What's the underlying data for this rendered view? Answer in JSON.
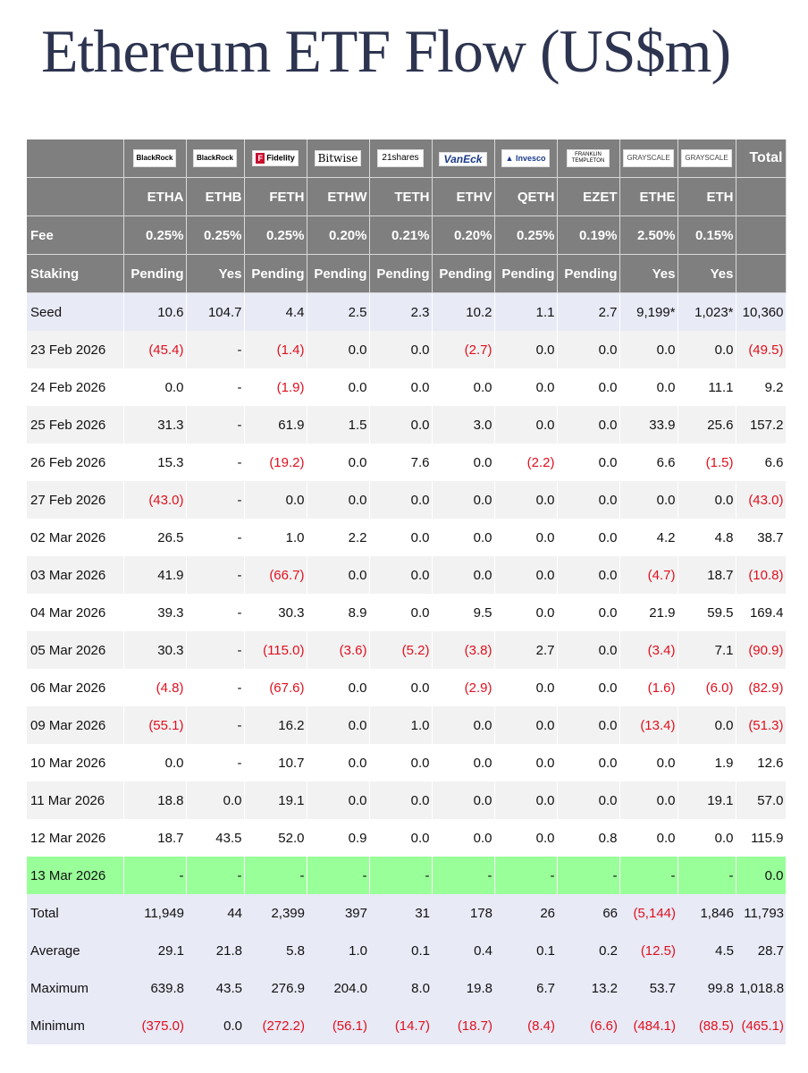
{
  "title": "Ethereum ETF Flow (US$m)",
  "issuer_logos": [
    "BlackRock",
    "BlackRock",
    "Fidelity",
    "Bitwise",
    "21shares",
    "VanEck",
    "Invesco",
    "FRANKLIN TEMPLETON",
    "GRAYSCALE",
    "GRAYSCALE"
  ],
  "total_header": "Total",
  "tickers": [
    "ETHA",
    "ETHB",
    "FETH",
    "ETHW",
    "TETH",
    "ETHV",
    "QETH",
    "EZET",
    "ETHE",
    "ETH"
  ],
  "fee_label": "Fee",
  "fees": [
    "0.25%",
    "0.25%",
    "0.25%",
    "0.20%",
    "0.21%",
    "0.20%",
    "0.25%",
    "0.19%",
    "2.50%",
    "0.15%"
  ],
  "staking_label": "Staking",
  "staking": [
    "Pending",
    "Yes",
    "Pending",
    "Pending",
    "Pending",
    "Pending",
    "Pending",
    "Pending",
    "Yes",
    "Yes"
  ],
  "rows": [
    {
      "label": "Seed",
      "values": [
        "10.6",
        "104.7",
        "4.4",
        "2.5",
        "2.3",
        "10.2",
        "1.1",
        "2.7",
        "9,199*",
        "1,023*",
        "10,360"
      ]
    },
    {
      "label": "23 Feb 2026",
      "values": [
        "(45.4)",
        "-",
        "(1.4)",
        "0.0",
        "0.0",
        "(2.7)",
        "0.0",
        "0.0",
        "0.0",
        "0.0",
        "(49.5)"
      ]
    },
    {
      "label": "24 Feb 2026",
      "values": [
        "0.0",
        "-",
        "(1.9)",
        "0.0",
        "0.0",
        "0.0",
        "0.0",
        "0.0",
        "0.0",
        "11.1",
        "9.2"
      ]
    },
    {
      "label": "25 Feb 2026",
      "values": [
        "31.3",
        "-",
        "61.9",
        "1.5",
        "0.0",
        "3.0",
        "0.0",
        "0.0",
        "33.9",
        "25.6",
        "157.2"
      ]
    },
    {
      "label": "26 Feb 2026",
      "values": [
        "15.3",
        "-",
        "(19.2)",
        "0.0",
        "7.6",
        "0.0",
        "(2.2)",
        "0.0",
        "6.6",
        "(1.5)",
        "6.6"
      ]
    },
    {
      "label": "27 Feb 2026",
      "values": [
        "(43.0)",
        "-",
        "0.0",
        "0.0",
        "0.0",
        "0.0",
        "0.0",
        "0.0",
        "0.0",
        "0.0",
        "(43.0)"
      ]
    },
    {
      "label": "02 Mar 2026",
      "values": [
        "26.5",
        "-",
        "1.0",
        "2.2",
        "0.0",
        "0.0",
        "0.0",
        "0.0",
        "4.2",
        "4.8",
        "38.7"
      ]
    },
    {
      "label": "03 Mar 2026",
      "values": [
        "41.9",
        "-",
        "(66.7)",
        "0.0",
        "0.0",
        "0.0",
        "0.0",
        "0.0",
        "(4.7)",
        "18.7",
        "(10.8)"
      ]
    },
    {
      "label": "04 Mar 2026",
      "values": [
        "39.3",
        "-",
        "30.3",
        "8.9",
        "0.0",
        "9.5",
        "0.0",
        "0.0",
        "21.9",
        "59.5",
        "169.4"
      ]
    },
    {
      "label": "05 Mar 2026",
      "values": [
        "30.3",
        "-",
        "(115.0)",
        "(3.6)",
        "(5.2)",
        "(3.8)",
        "2.7",
        "0.0",
        "(3.4)",
        "7.1",
        "(90.9)"
      ]
    },
    {
      "label": "06 Mar 2026",
      "values": [
        "(4.8)",
        "-",
        "(67.6)",
        "0.0",
        "0.0",
        "(2.9)",
        "0.0",
        "0.0",
        "(1.6)",
        "(6.0)",
        "(82.9)"
      ]
    },
    {
      "label": "09 Mar 2026",
      "values": [
        "(55.1)",
        "-",
        "16.2",
        "0.0",
        "1.0",
        "0.0",
        "0.0",
        "0.0",
        "(13.4)",
        "0.0",
        "(51.3)"
      ]
    },
    {
      "label": "10 Mar 2026",
      "values": [
        "0.0",
        "-",
        "10.7",
        "0.0",
        "0.0",
        "0.0",
        "0.0",
        "0.0",
        "0.0",
        "1.9",
        "12.6"
      ]
    },
    {
      "label": "11 Mar 2026",
      "values": [
        "18.8",
        "0.0",
        "19.1",
        "0.0",
        "0.0",
        "0.0",
        "0.0",
        "0.0",
        "0.0",
        "19.1",
        "57.0"
      ]
    },
    {
      "label": "12 Mar 2026",
      "values": [
        "18.7",
        "43.5",
        "52.0",
        "0.9",
        "0.0",
        "0.0",
        "0.0",
        "0.8",
        "0.0",
        "0.0",
        "115.9"
      ]
    },
    {
      "label": "13 Mar 2026",
      "values": [
        "-",
        "-",
        "-",
        "-",
        "-",
        "-",
        "-",
        "-",
        "-",
        "-",
        "0.0"
      ]
    }
  ],
  "summary": [
    {
      "label": "Total",
      "values": [
        "11,949",
        "44",
        "2,399",
        "397",
        "31",
        "178",
        "26",
        "66",
        "(5,144)",
        "1,846",
        "11,793"
      ]
    },
    {
      "label": "Average",
      "values": [
        "29.1",
        "21.8",
        "5.8",
        "1.0",
        "0.1",
        "0.4",
        "0.1",
        "0.2",
        "(12.5)",
        "4.5",
        "28.7"
      ]
    },
    {
      "label": "Maximum",
      "values": [
        "639.8",
        "43.5",
        "276.9",
        "204.0",
        "8.0",
        "19.8",
        "6.7",
        "13.2",
        "53.7",
        "99.8",
        "1,018.8"
      ]
    },
    {
      "label": "Minimum",
      "values": [
        "(375.0)",
        "0.0",
        "(272.2)",
        "(56.1)",
        "(14.7)",
        "(18.7)",
        "(8.4)",
        "(6.6)",
        "(484.1)",
        "(88.5)",
        "(465.1)"
      ]
    }
  ],
  "colors": {
    "header_bg": "#7f7f7f",
    "negative": "#e0101e",
    "highlight_row": "#99ff99",
    "seed_and_summary_bg": "#e8eaf6"
  }
}
